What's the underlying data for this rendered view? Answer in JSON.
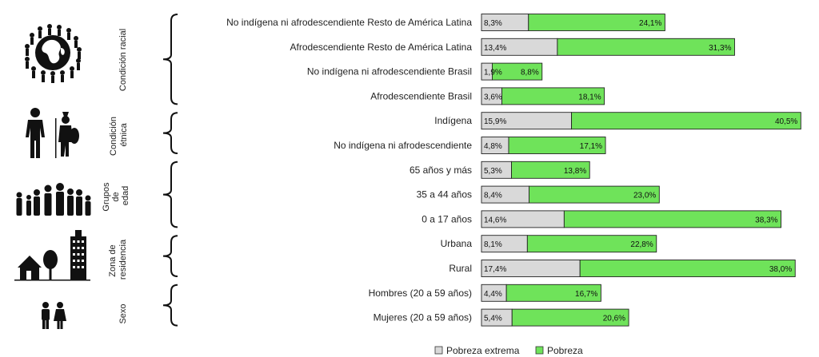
{
  "chart_data": {
    "type": "bar",
    "stacked": true,
    "orientation": "horizontal",
    "groups": [
      {
        "label": "Condición racial",
        "icon": "world-people-icon",
        "categories": [
          "No indígena ni afrodescendiente Resto de América Latina",
          "Afrodescendiente Resto de América Latina",
          "No indígena ni afrodescendiente Brasil",
          "Afrodescendiente Brasil"
        ]
      },
      {
        "label": "Condición étnica",
        "label_lines": [
          "Condición",
          "étnica"
        ],
        "icon": "indigenous-people-icon",
        "categories": [
          "Indígena",
          "No indígena ni afrodescendiente"
        ]
      },
      {
        "label": "Grupos de edad",
        "label_lines": [
          "Grupos",
          "de",
          "edad"
        ],
        "icon": "family-icon",
        "categories": [
          "65 años y más",
          "35 a 44 años",
          "0  a 17 años"
        ]
      },
      {
        "label": "Zona de residencia",
        "label_lines": [
          "Zona de",
          "residencia"
        ],
        "icon": "house-tree-building-icon",
        "categories": [
          "Urbana",
          "Rural"
        ]
      },
      {
        "label": "Sexo",
        "icon": "man-woman-icon",
        "categories": [
          "Hombres (20 a 59 años)",
          "Mujeres (20 a 59 años)"
        ]
      }
    ],
    "categories": [
      "No indígena ni afrodescendiente Resto de América Latina",
      "Afrodescendiente Resto de América Latina",
      "No indígena ni afrodescendiente Brasil",
      "Afrodescendiente Brasil",
      "Indígena",
      "No indígena ni afrodescendiente",
      "65 años y más",
      "35 a 44 años",
      "0  a 17 años",
      "Urbana",
      "Rural",
      "Hombres (20 a 59 años)",
      "Mujeres (20 a 59 años)"
    ],
    "series": [
      {
        "name": "Pobreza extrema",
        "color": "#d9d9d9",
        "values": [
          8.3,
          13.4,
          1.9,
          3.6,
          15.9,
          4.8,
          5.3,
          8.4,
          14.6,
          8.1,
          17.4,
          4.4,
          5.4
        ],
        "labels": [
          "8,3%",
          "13,4%",
          "1,9%",
          "3,6%",
          "15,9%",
          "4,8%",
          "5,3%",
          "8,4%",
          "14,6%",
          "8,1%",
          "17,4%",
          "4,4%",
          "5,4%"
        ]
      },
      {
        "name": "Pobreza",
        "color": "#6fe35a",
        "values": [
          24.1,
          31.3,
          8.8,
          18.1,
          40.5,
          17.1,
          13.8,
          23.0,
          38.3,
          22.8,
          38.0,
          16.7,
          20.6
        ],
        "labels": [
          "24,1%",
          "31,3%",
          "8,8%",
          "18,1%",
          "40,5%",
          "17,1%",
          "13,8%",
          "23,0%",
          "38,3%",
          "22,8%",
          "38,0%",
          "16,7%",
          "20,6%"
        ]
      }
    ],
    "xlim": [
      0,
      65
    ],
    "grid": false,
    "legend": "bottom-center"
  }
}
